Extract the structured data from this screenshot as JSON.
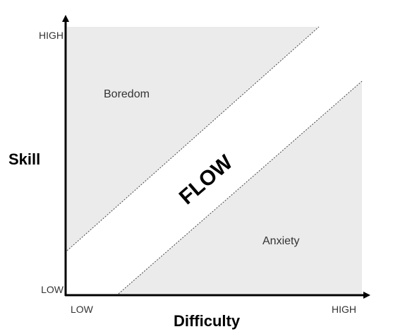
{
  "axes": {
    "y": {
      "label": "Skill",
      "high": "HIGH",
      "low": "LOW"
    },
    "x": {
      "label": "Difficulty",
      "low": "LOW",
      "high": "HIGH"
    }
  },
  "regions": {
    "boredom": "Boredom",
    "flow": "FLOW",
    "anxiety": "Anxiety"
  }
}
